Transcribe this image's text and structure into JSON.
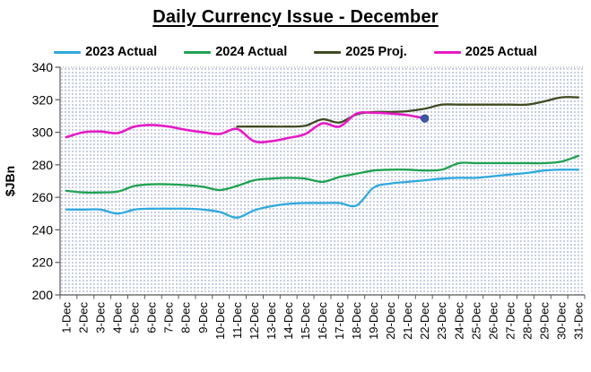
{
  "title": "Daily Currency Issue -  December",
  "chart_data": {
    "type": "line",
    "title": "Daily Currency Issue -  December",
    "xlabel": "",
    "ylabel": "$JBn",
    "ylim": [
      200,
      340
    ],
    "ytick_step": 20,
    "ytick_labels": [
      "200",
      "220",
      "240",
      "260",
      "280",
      "300",
      "320",
      "340"
    ],
    "grid": false,
    "legend_position": "top",
    "plot_background": "light dotted pattern",
    "categories": [
      "1-Dec",
      "2-Dec",
      "3-Dec",
      "4-Dec",
      "5-Dec",
      "6-Dec",
      "7-Dec",
      "8-Dec",
      "9-Dec",
      "10-Dec",
      "11-Dec",
      "12-Dec",
      "13-Dec",
      "14-Dec",
      "15-Dec",
      "16-Dec",
      "17-Dec",
      "18-Dec",
      "19-Dec",
      "20-Dec",
      "21-Dec",
      "22-Dec",
      "23-Dec",
      "24-Dec",
      "25-Dec",
      "26-Dec",
      "27-Dec",
      "28-Dec",
      "29-Dec",
      "30-Dec",
      "31-Dec"
    ],
    "series": [
      {
        "name": "2023 Actual",
        "color": "#2EA9DE",
        "values": [
          252.5,
          252.5,
          252.5,
          250,
          252.5,
          253,
          253,
          253,
          252.5,
          251,
          247.5,
          252,
          254.5,
          256,
          256.5,
          256.5,
          256.5,
          255,
          266,
          268.5,
          269.5,
          270.5,
          271.5,
          272,
          272,
          273,
          274,
          275,
          276.5,
          277,
          277
        ]
      },
      {
        "name": "2024 Actual",
        "color": "#1FA251",
        "values": [
          264,
          263,
          263,
          263.5,
          267,
          268,
          268,
          267.5,
          266.5,
          264.5,
          267,
          270.5,
          271.5,
          272,
          271.5,
          269.5,
          272.5,
          274.5,
          276.5,
          277,
          277,
          276.5,
          277,
          281,
          281,
          281,
          281,
          281,
          281,
          282,
          285.5
        ]
      },
      {
        "name": "2025 Proj.",
        "color": "#3F4A22",
        "values": [
          null,
          null,
          null,
          null,
          null,
          null,
          null,
          null,
          null,
          null,
          303.5,
          303.5,
          303.5,
          303.5,
          304,
          308,
          306,
          311,
          312.5,
          312.5,
          313,
          314.5,
          317,
          317,
          317,
          317,
          317,
          317,
          319,
          321.5,
          321.5
        ]
      },
      {
        "name": "2025 Actual",
        "color": "#E61BC5",
        "end_marker_color": "#3C59A6",
        "values": [
          297,
          300,
          300.5,
          299.5,
          303.5,
          304.5,
          303.5,
          301.5,
          300,
          299,
          302,
          294.5,
          294.5,
          296.5,
          299,
          305.5,
          303.5,
          311.5,
          312,
          311.5,
          310.5,
          308.5,
          null,
          null,
          null,
          null,
          null,
          null,
          null,
          null,
          null
        ]
      }
    ]
  },
  "colors": {
    "axis": "#595959",
    "text": "#000000",
    "top_gridline": "#9a9a9a"
  }
}
